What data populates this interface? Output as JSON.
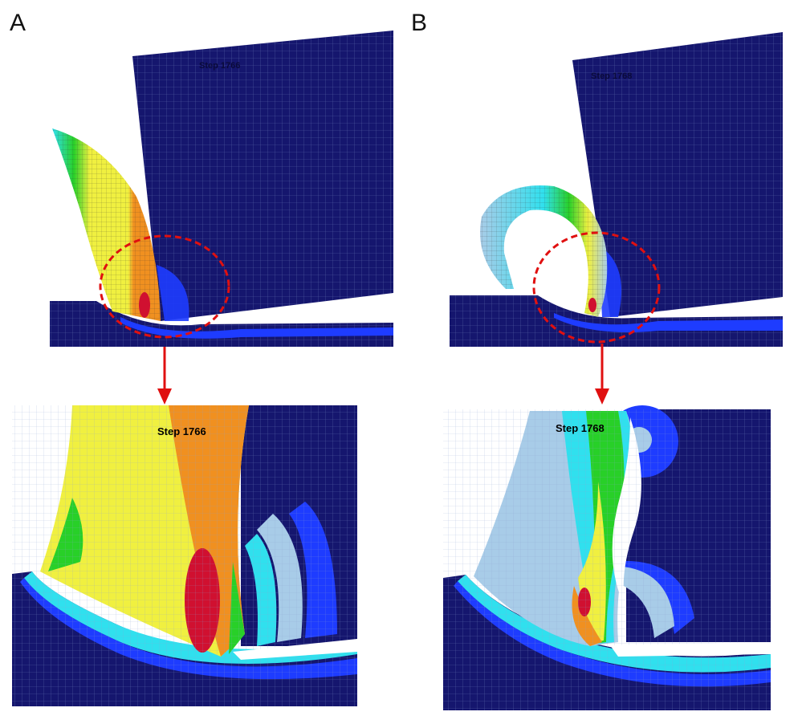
{
  "panels": [
    {
      "label": "A",
      "overview_step": "Step 1766",
      "zoom_step": "Step 1766"
    },
    {
      "label": "B",
      "overview_step": "Step 1768",
      "zoom_step": "Step 1768"
    }
  ]
}
